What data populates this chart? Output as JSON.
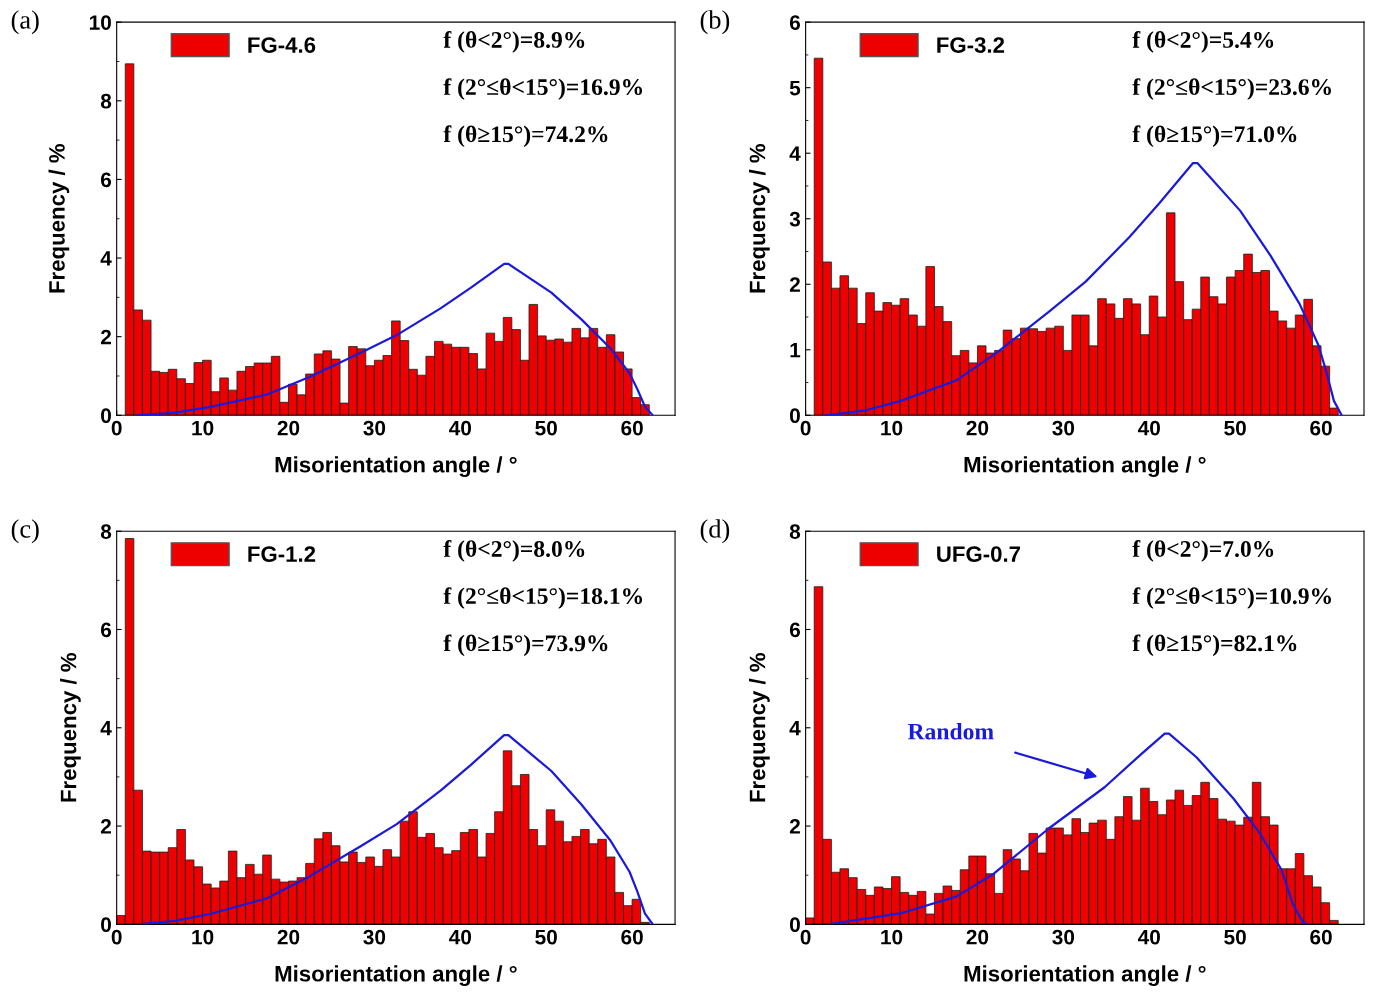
{
  "chart_data": [
    {
      "type": "histogram",
      "title": "(a)",
      "xlabel": "Misorientation angle / °",
      "ylabel": "Frequency / %",
      "xlim": [
        0,
        65
      ],
      "xticks": [
        0,
        10,
        20,
        30,
        40,
        50,
        60
      ],
      "ylim": [
        0,
        10
      ],
      "yticks": [
        0,
        2,
        4,
        6,
        8,
        10
      ],
      "legend": "top left",
      "grid": false,
      "bins": [
        1,
        2,
        3,
        4,
        5,
        6,
        7,
        8,
        9,
        10,
        11,
        12,
        13,
        14,
        15,
        16,
        17,
        18,
        19,
        20,
        21,
        22,
        23,
        24,
        25,
        26,
        27,
        28,
        29,
        30,
        31,
        32,
        33,
        34,
        35,
        36,
        37,
        38,
        39,
        40,
        41,
        42,
        43,
        44,
        45,
        46,
        47,
        48,
        49,
        50,
        51,
        52,
        53,
        54,
        55,
        56,
        57,
        58,
        59,
        60,
        61,
        62
      ],
      "series": [
        {
          "name": "FG-4.6",
          "color": "#ee0000",
          "values": [
            8.94,
            2.68,
            2.42,
            1.12,
            1.09,
            1.17,
            0.93,
            0.81,
            1.34,
            1.4,
            0.6,
            0.95,
            0.64,
            1.12,
            1.24,
            1.33,
            1.33,
            1.5,
            0.33,
            0.79,
            0.52,
            1.05,
            1.56,
            1.64,
            1.43,
            0.31,
            1.75,
            1.69,
            1.26,
            1.4,
            1.52,
            2.4,
            1.9,
            1.17,
            1.02,
            1.5,
            1.88,
            1.81,
            1.73,
            1.73,
            1.57,
            1.18,
            2.09,
            1.88,
            2.49,
            2.18,
            1.4,
            2.82,
            2.02,
            1.91,
            1.94,
            1.86,
            2.21,
            1.97,
            2.21,
            1.73,
            2.05,
            1.61,
            1.18,
            0.45,
            0.27
          ]
        },
        {
          "type": "line",
          "color": "#1a1adc",
          "x": [
            2.5,
            6.8,
            11.1,
            17.5,
            22.3,
            28.3,
            32.6,
            37.7,
            41.2,
            45.1,
            45.6,
            50.6,
            54.1,
            57.5,
            59.7,
            60.6,
            61.5,
            62.4
          ],
          "values": [
            0,
            0.07,
            0.22,
            0.53,
            0.96,
            1.58,
            2.04,
            2.72,
            3.24,
            3.85,
            3.85,
            3.12,
            2.44,
            1.7,
            1.07,
            0.67,
            0.22,
            0
          ]
        }
      ],
      "annotations": [
        "f (θ<2°)=8.9%",
        "f (2°≤θ<15°)=16.9%",
        "f (θ≥15°)=74.2%"
      ]
    },
    {
      "type": "histogram",
      "title": "(b)",
      "xlabel": "Misorientation angle / °",
      "ylabel": "Frequency / %",
      "xlim": [
        0,
        65
      ],
      "xticks": [
        0,
        10,
        20,
        30,
        40,
        50,
        60
      ],
      "ylim": [
        0,
        6
      ],
      "yticks": [
        0,
        1,
        2,
        3,
        4,
        5,
        6
      ],
      "legend": "top left",
      "grid": false,
      "bins": [
        1,
        2,
        3,
        4,
        5,
        6,
        7,
        8,
        9,
        10,
        11,
        12,
        13,
        14,
        15,
        16,
        17,
        18,
        19,
        20,
        21,
        22,
        23,
        24,
        25,
        26,
        27,
        28,
        29,
        30,
        31,
        32,
        33,
        34,
        35,
        36,
        37,
        38,
        39,
        40,
        41,
        42,
        43,
        44,
        45,
        46,
        47,
        48,
        49,
        50,
        51,
        52,
        53,
        54,
        55,
        56,
        57,
        58,
        59,
        60,
        61,
        62
      ],
      "series": [
        {
          "name": "FG-3.2",
          "color": "#ee0000",
          "values": [
            5.45,
            2.34,
            1.94,
            2.13,
            1.94,
            1.4,
            1.87,
            1.59,
            1.72,
            1.68,
            1.78,
            1.53,
            1.36,
            2.27,
            1.66,
            1.43,
            0.91,
            0.99,
            0.8,
            1.06,
            0.95,
            0.99,
            1.3,
            1.17,
            1.33,
            1.32,
            1.28,
            1.33,
            1.36,
            0.99,
            1.53,
            1.53,
            1.06,
            1.78,
            1.7,
            1.48,
            1.78,
            1.7,
            1.23,
            1.82,
            1.5,
            3.09,
            2.04,
            1.46,
            1.62,
            2.11,
            1.81,
            1.7,
            2.11,
            2.21,
            2.46,
            2.18,
            2.21,
            1.59,
            1.44,
            1.33,
            1.53,
            1.77,
            1.06,
            0.75,
            0.11
          ]
        },
        {
          "type": "line",
          "color": "#1a1adc",
          "x": [
            2.5,
            6.8,
            11.1,
            17.5,
            22.3,
            28.3,
            32.6,
            37.7,
            41.2,
            45.1,
            45.6,
            50.6,
            54.1,
            57.5,
            59.7,
            60.6,
            61.5,
            62.4
          ],
          "values": [
            0,
            0.07,
            0.22,
            0.53,
            0.96,
            1.58,
            2.04,
            2.72,
            3.24,
            3.85,
            3.85,
            3.12,
            2.44,
            1.7,
            1.07,
            0.67,
            0.22,
            0
          ]
        }
      ],
      "annotations": [
        "f (θ<2°)=5.4%",
        "f (2°≤θ<15°)=23.6%",
        "f (θ≥15°)=71.0%"
      ]
    },
    {
      "type": "histogram",
      "title": "(c)",
      "xlabel": "Misorientation angle / °",
      "ylabel": "Frequency / %",
      "xlim": [
        0,
        65
      ],
      "xticks": [
        0,
        10,
        20,
        30,
        40,
        50,
        60
      ],
      "ylim": [
        0,
        8
      ],
      "yticks": [
        0,
        2,
        4,
        6,
        8
      ],
      "legend": "top left",
      "grid": false,
      "bins": [
        0,
        1,
        2,
        3,
        4,
        5,
        6,
        7,
        8,
        9,
        10,
        11,
        12,
        13,
        14,
        15,
        16,
        17,
        18,
        19,
        20,
        21,
        22,
        23,
        24,
        25,
        26,
        27,
        28,
        29,
        30,
        31,
        32,
        33,
        34,
        35,
        36,
        37,
        38,
        39,
        40,
        41,
        42,
        43,
        44,
        45,
        46,
        47,
        48,
        49,
        50,
        51,
        52,
        53,
        54,
        55,
        56,
        57,
        58,
        59,
        60,
        61,
        62
      ],
      "series": [
        {
          "name": "FG-1.2",
          "color": "#ee0000",
          "values": [
            0.18,
            7.85,
            2.73,
            1.49,
            1.47,
            1.47,
            1.56,
            1.93,
            1.31,
            1.17,
            0.82,
            0.74,
            0.88,
            1.49,
            0.95,
            1.22,
            1.02,
            1.41,
            0.92,
            0.86,
            0.88,
            0.95,
            1.24,
            1.74,
            1.87,
            1.6,
            1.27,
            1.47,
            1.26,
            1.37,
            1.18,
            1.52,
            1.37,
            2.1,
            2.29,
            1.77,
            1.85,
            1.56,
            1.43,
            1.5,
            1.87,
            1.93,
            1.37,
            1.85,
            2.29,
            3.53,
            2.82,
            3.05,
            1.93,
            1.6,
            2.33,
            2.1,
            1.68,
            1.79,
            1.93,
            1.64,
            1.73,
            1.37,
            0.65,
            0.38,
            0.51,
            0.04
          ]
        },
        {
          "type": "line",
          "color": "#1a1adc",
          "x": [
            2.5,
            6.8,
            11.1,
            17.5,
            22.3,
            28.3,
            32.6,
            37.7,
            41.2,
            45.1,
            45.6,
            50.6,
            54.1,
            57.5,
            59.7,
            60.6,
            61.5,
            62.4
          ],
          "values": [
            0,
            0.07,
            0.22,
            0.53,
            0.96,
            1.58,
            2.04,
            2.72,
            3.24,
            3.85,
            3.85,
            3.12,
            2.44,
            1.7,
            1.07,
            0.67,
            0.22,
            0
          ]
        }
      ],
      "annotations": [
        "f (θ<2°)=8.0%",
        "f (2°≤θ<15°)=18.1%",
        "f (θ≥15°)=73.9%"
      ]
    },
    {
      "type": "histogram",
      "title": "(d)",
      "xlabel": "Misorientation angle / °",
      "ylabel": "Frequency / %",
      "xlim": [
        0,
        65
      ],
      "xticks": [
        0,
        10,
        20,
        30,
        40,
        50,
        60
      ],
      "ylim": [
        0,
        8
      ],
      "yticks": [
        0,
        2,
        4,
        6,
        8
      ],
      "legend": "top left",
      "grid": false,
      "bins": [
        0,
        1,
        2,
        3,
        4,
        5,
        6,
        7,
        8,
        9,
        10,
        11,
        12,
        13,
        14,
        15,
        16,
        17,
        18,
        19,
        20,
        21,
        22,
        23,
        24,
        25,
        26,
        27,
        28,
        29,
        30,
        31,
        32,
        33,
        34,
        35,
        36,
        37,
        38,
        39,
        40,
        41,
        42,
        43,
        44,
        45,
        46,
        47,
        48,
        49,
        50,
        51,
        52,
        53,
        54,
        55,
        56,
        57,
        58,
        59,
        60,
        61,
        62
      ],
      "series": [
        {
          "name": "UFG-0.7",
          "color": "#ee0000",
          "values": [
            0.13,
            6.87,
            1.73,
            1.06,
            1.13,
            0.95,
            0.71,
            0.59,
            0.76,
            0.73,
            0.97,
            0.65,
            0.59,
            0.67,
            0.21,
            0.63,
            0.78,
            0.69,
            1.11,
            1.39,
            1.39,
            1.03,
            0.63,
            1.52,
            1.33,
            1.09,
            1.85,
            1.45,
            1.96,
            1.96,
            1.82,
            2.15,
            1.87,
            2.06,
            2.12,
            1.73,
            2.19,
            2.6,
            2.12,
            2.77,
            2.5,
            2.23,
            2.53,
            2.73,
            2.42,
            2.62,
            2.89,
            2.56,
            2.14,
            2.1,
            2.02,
            2.18,
            2.89,
            2.19,
            2.02,
            1.13,
            1.13,
            1.44,
            0.99,
            0.76,
            0.44,
            0.08
          ]
        },
        {
          "type": "line",
          "color": "#1a1adc",
          "x": [
            2.6,
            11.2,
            17.6,
            21.9,
            28.3,
            34.8,
            39.1,
            41.8,
            42.3,
            45.5,
            49.8,
            52.8,
            55.4,
            56.7,
            57.9,
            58.4
          ],
          "values": [
            0,
            0.23,
            0.57,
            1.03,
            1.95,
            2.79,
            3.47,
            3.88,
            3.88,
            3.4,
            2.56,
            1.87,
            1.11,
            0.42,
            0.04,
            0
          ]
        }
      ],
      "annotations": [
        "f (θ<2°)=7.0%",
        "f (2°≤θ<15°)=10.9%",
        "f (θ≥15°)=82.1%",
        "Random"
      ]
    }
  ]
}
